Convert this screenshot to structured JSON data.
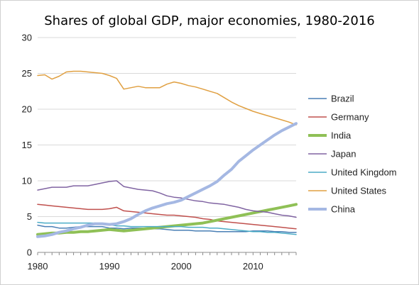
{
  "chart_data": {
    "type": "line",
    "title": "Shares of global GDP, major economies, 1980-2016",
    "xlabel": "",
    "ylabel": "",
    "xlim": [
      1980,
      2016
    ],
    "ylim": [
      0,
      30
    ],
    "x_ticks": [
      1980,
      1990,
      2000,
      2010
    ],
    "y_ticks": [
      0,
      5,
      10,
      15,
      20,
      25,
      30
    ],
    "grid": "horizontal",
    "legend_position": "right",
    "x": [
      1980,
      1981,
      1982,
      1983,
      1984,
      1985,
      1986,
      1987,
      1988,
      1989,
      1990,
      1991,
      1992,
      1993,
      1994,
      1995,
      1996,
      1997,
      1998,
      1999,
      2000,
      2001,
      2002,
      2003,
      2004,
      2005,
      2006,
      2007,
      2008,
      2009,
      2010,
      2011,
      2012,
      2013,
      2014,
      2015,
      2016
    ],
    "series": [
      {
        "name": "Brazil",
        "color": "#4a7fb5",
        "width": 1.5,
        "values": [
          3.8,
          3.6,
          3.6,
          3.4,
          3.4,
          3.5,
          3.6,
          3.6,
          3.6,
          3.6,
          3.4,
          3.4,
          3.3,
          3.4,
          3.4,
          3.4,
          3.3,
          3.3,
          3.2,
          3.1,
          3.1,
          3.1,
          3.0,
          3.0,
          3.0,
          2.9,
          2.9,
          2.9,
          2.9,
          2.9,
          3.0,
          3.0,
          3.0,
          2.9,
          2.9,
          2.8,
          2.8
        ]
      },
      {
        "name": "Germany",
        "color": "#c0504d",
        "width": 1.5,
        "values": [
          6.7,
          6.6,
          6.5,
          6.4,
          6.3,
          6.2,
          6.1,
          6.0,
          6.0,
          6.0,
          6.1,
          6.3,
          5.8,
          5.7,
          5.6,
          5.5,
          5.4,
          5.3,
          5.2,
          5.2,
          5.1,
          5.0,
          4.9,
          4.7,
          4.6,
          4.4,
          4.3,
          4.2,
          4.1,
          4.0,
          3.9,
          3.8,
          3.7,
          3.6,
          3.5,
          3.4,
          3.3
        ]
      },
      {
        "name": "India",
        "color": "#8fc056",
        "width": 4,
        "values": [
          2.5,
          2.6,
          2.7,
          2.7,
          2.8,
          2.8,
          2.9,
          2.9,
          3.0,
          3.1,
          3.2,
          3.1,
          3.0,
          3.1,
          3.2,
          3.3,
          3.4,
          3.5,
          3.6,
          3.7,
          3.8,
          3.9,
          4.0,
          4.1,
          4.3,
          4.5,
          4.7,
          4.9,
          5.1,
          5.3,
          5.5,
          5.7,
          5.9,
          6.1,
          6.3,
          6.5,
          6.7
        ]
      },
      {
        "name": "Japan",
        "color": "#8064a2",
        "width": 1.5,
        "values": [
          8.7,
          8.9,
          9.1,
          9.1,
          9.1,
          9.3,
          9.3,
          9.3,
          9.5,
          9.7,
          9.9,
          10.0,
          9.2,
          9.0,
          8.8,
          8.7,
          8.6,
          8.3,
          7.9,
          7.7,
          7.6,
          7.4,
          7.2,
          7.1,
          6.9,
          6.8,
          6.7,
          6.5,
          6.3,
          6.0,
          5.8,
          5.7,
          5.6,
          5.4,
          5.2,
          5.1,
          4.9
        ]
      },
      {
        "name": "United Kingdom",
        "color": "#4bacc6",
        "width": 1.5,
        "values": [
          4.2,
          4.1,
          4.1,
          4.1,
          4.1,
          4.1,
          4.1,
          4.1,
          4.1,
          4.0,
          3.9,
          3.7,
          3.7,
          3.6,
          3.6,
          3.6,
          3.6,
          3.6,
          3.6,
          3.6,
          3.6,
          3.5,
          3.5,
          3.5,
          3.4,
          3.4,
          3.3,
          3.2,
          3.1,
          3.0,
          2.9,
          2.9,
          2.8,
          2.8,
          2.7,
          2.6,
          2.5
        ]
      },
      {
        "name": "United States",
        "color": "#e0a042",
        "width": 1.5,
        "values": [
          24.7,
          24.8,
          24.2,
          24.6,
          25.2,
          25.3,
          25.3,
          25.2,
          25.1,
          25.0,
          24.7,
          24.3,
          22.8,
          23.0,
          23.2,
          23.0,
          23.0,
          23.0,
          23.5,
          23.8,
          23.6,
          23.3,
          23.1,
          22.8,
          22.5,
          22.2,
          21.6,
          21.0,
          20.5,
          20.1,
          19.7,
          19.4,
          19.1,
          18.8,
          18.5,
          18.2,
          17.8
        ]
      },
      {
        "name": "China",
        "color": "#a5b8e3",
        "width": 4,
        "values": [
          2.2,
          2.3,
          2.5,
          2.8,
          3.0,
          3.3,
          3.5,
          3.8,
          4.0,
          4.0,
          3.9,
          4.0,
          4.3,
          4.7,
          5.3,
          5.8,
          6.2,
          6.5,
          6.8,
          7.0,
          7.3,
          7.8,
          8.3,
          8.8,
          9.3,
          9.9,
          10.8,
          11.6,
          12.7,
          13.5,
          14.3,
          15.0,
          15.7,
          16.4,
          17.0,
          17.5,
          18.0
        ]
      }
    ]
  }
}
